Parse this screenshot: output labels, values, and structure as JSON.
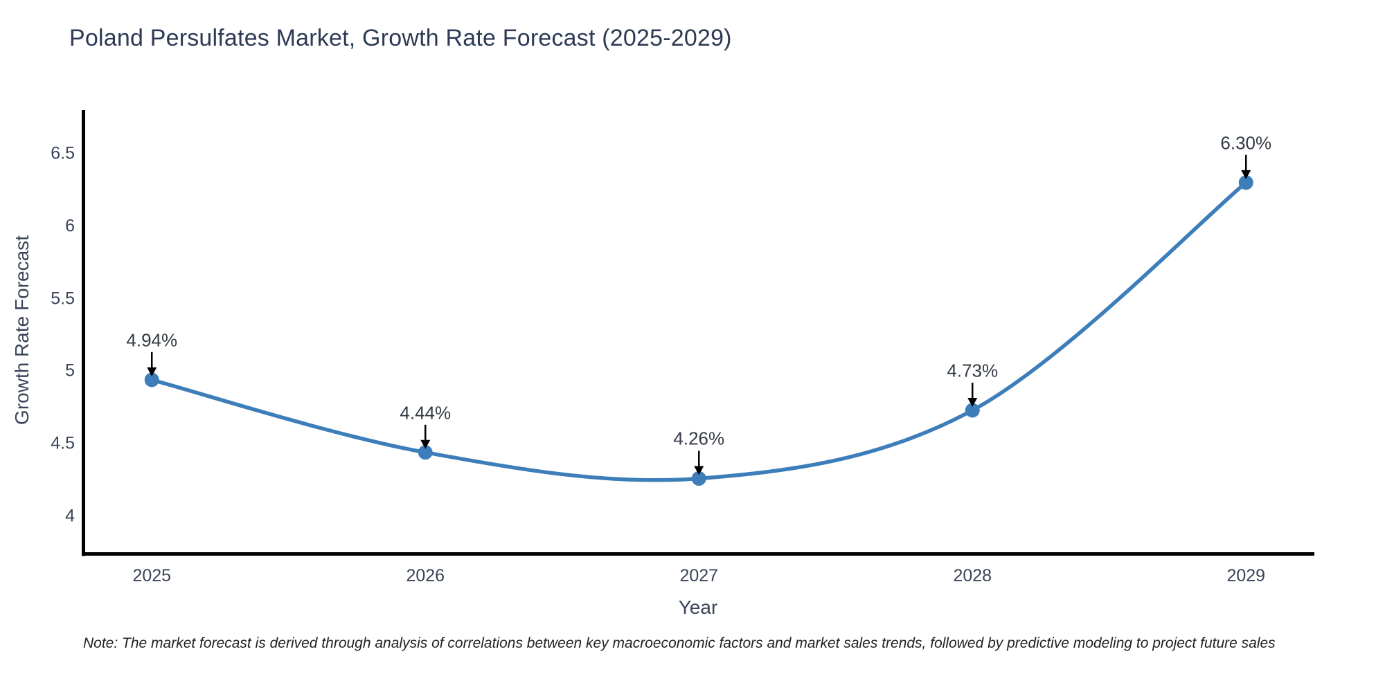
{
  "title": "Poland Persulfates Market, Growth Rate Forecast (2025-2029)",
  "note": "Note: The market forecast is derived through analysis of correlations between key macroeconomic factors and market sales trends, followed by predictive modeling to project future sales",
  "chart_data": {
    "type": "line",
    "title": "Poland Persulfates Market, Growth Rate Forecast (2025-2029)",
    "xlabel": "Year",
    "ylabel": "Growth Rate Forecast",
    "x": [
      2025,
      2026,
      2027,
      2028,
      2029
    ],
    "values": [
      4.94,
      4.44,
      4.26,
      4.73,
      6.3
    ],
    "point_labels": [
      "4.94%",
      "4.44%",
      "4.26%",
      "4.73%",
      "6.30%"
    ],
    "xticks": [
      "2025",
      "2026",
      "2027",
      "2028",
      "2029"
    ],
    "yticks": [
      4,
      4.5,
      5,
      5.5,
      6,
      6.5
    ],
    "xlim": [
      2024.75,
      2029.25
    ],
    "ylim": [
      3.74,
      6.8
    ],
    "grid": false,
    "legend": "none",
    "smooth": true,
    "line_color": "#3d7eba",
    "marker_color": "#3d7eba",
    "arrow_color": "#000000",
    "spine_color": "#000000"
  }
}
